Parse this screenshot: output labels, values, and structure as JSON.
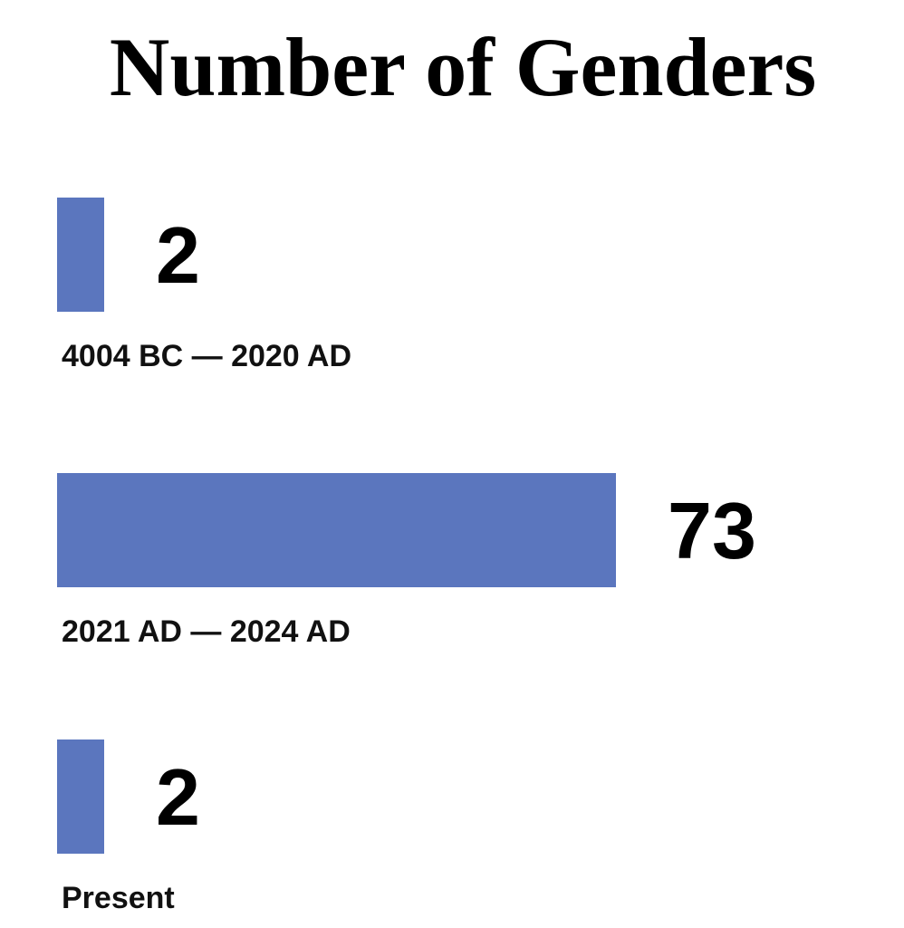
{
  "chart_data": {
    "type": "bar",
    "orientation": "horizontal",
    "title": "Number of Genders",
    "categories": [
      "4004 BC — 2020 AD",
      "2021 AD — 2024 AD",
      "Present"
    ],
    "values": [
      2,
      73,
      2
    ],
    "xlim": [
      0,
      73
    ],
    "grid": false,
    "bar_color": "#5b76be"
  }
}
